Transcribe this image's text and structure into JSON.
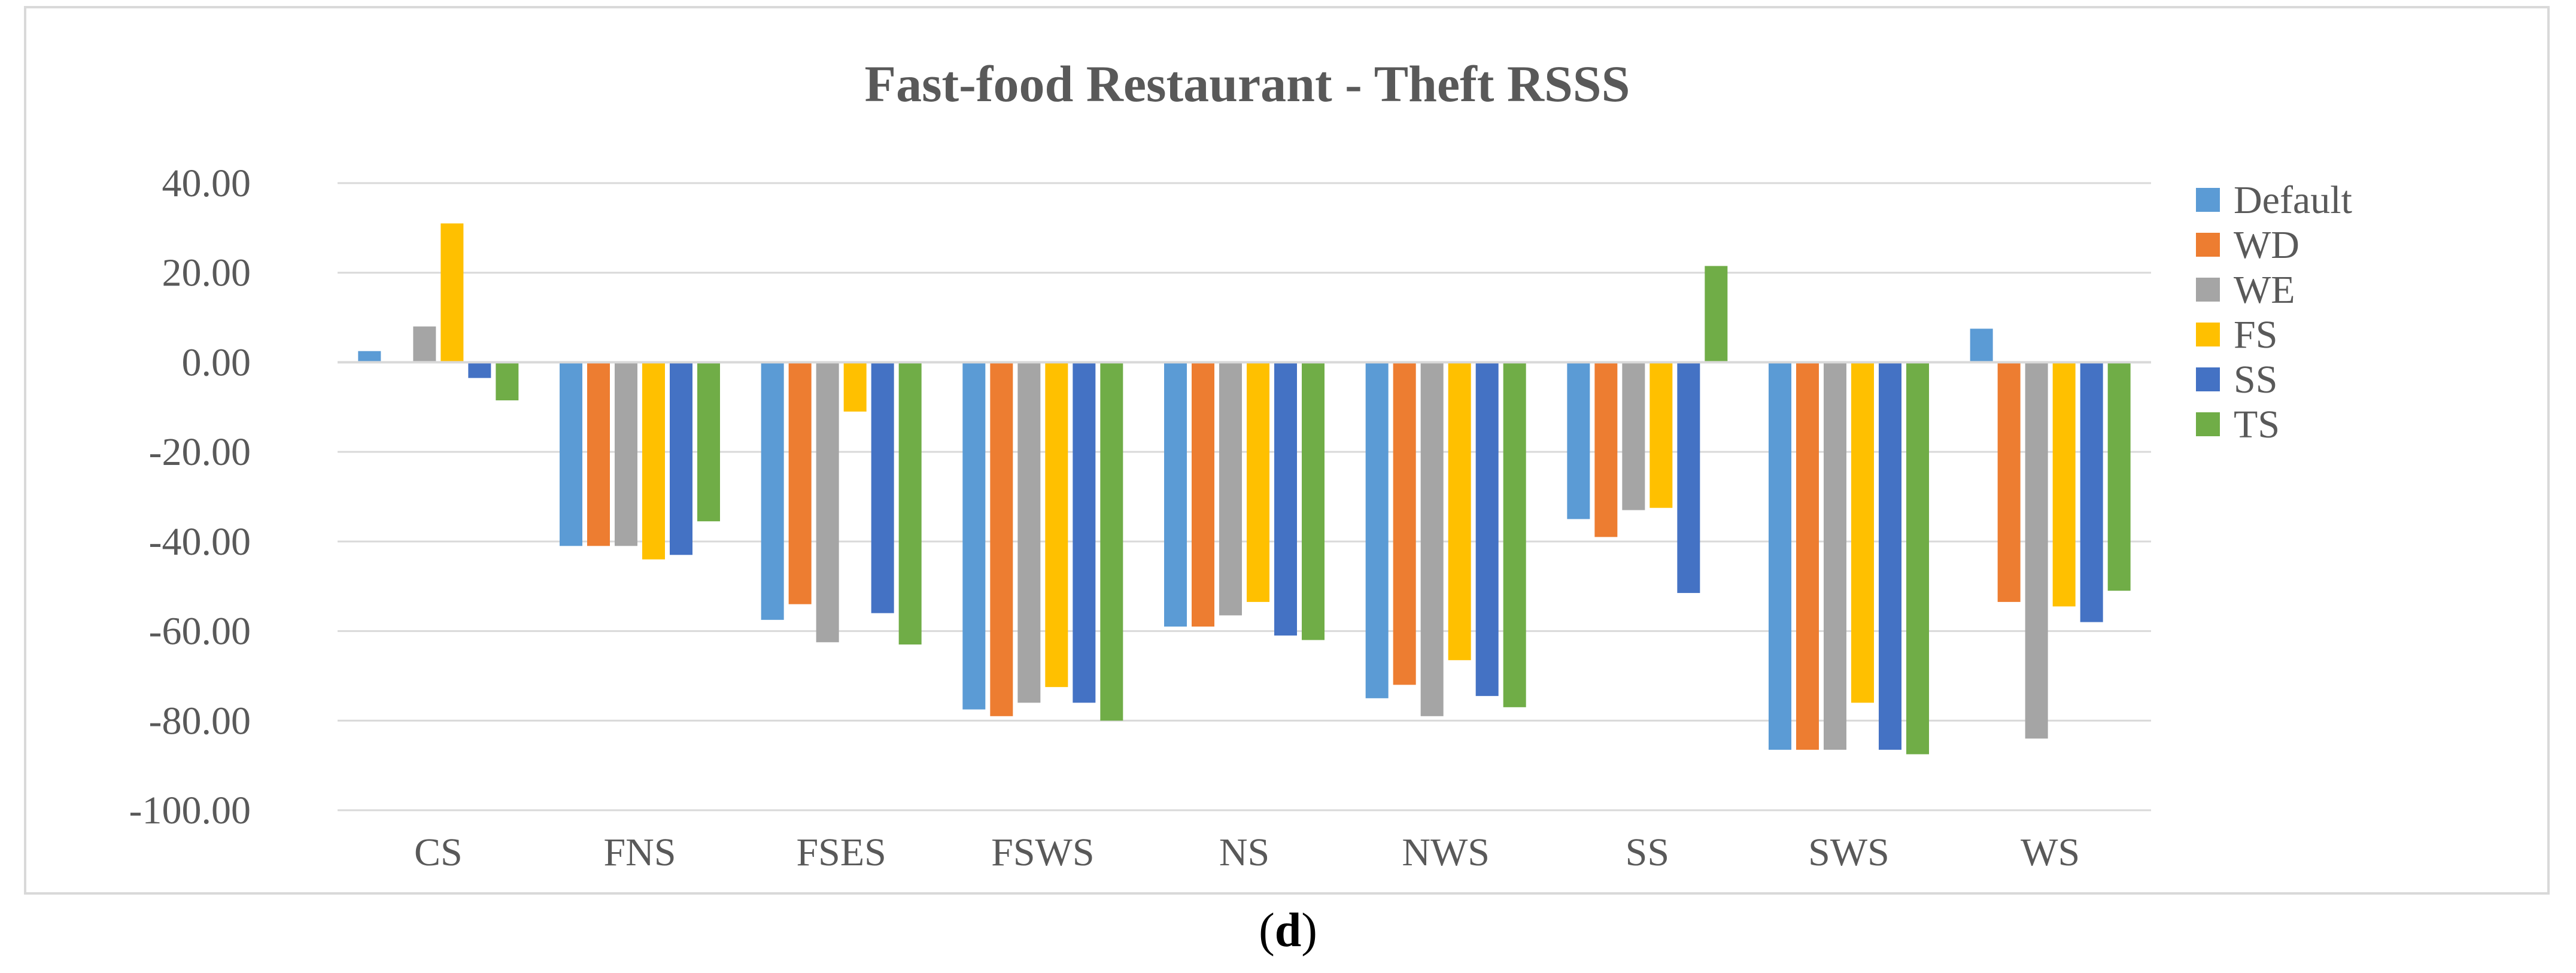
{
  "caption": {
    "open": "(",
    "letter": "d",
    "close": ")"
  },
  "chart_data": {
    "type": "bar",
    "title": "Fast-food Restaurant - Theft RSSS",
    "xlabel": "",
    "ylabel": "",
    "ylim": [
      -100,
      40
    ],
    "yticks": [
      "40.00",
      "20.00",
      "0.00",
      "-20.00",
      "-40.00",
      "-60.00",
      "-80.00",
      "-100.00"
    ],
    "grid": true,
    "legend_position": "right",
    "categories": [
      "CS",
      "FNS",
      "FSES",
      "FSWS",
      "NS",
      "NWS",
      "SS",
      "SWS",
      "WS"
    ],
    "series": [
      {
        "name": "Default",
        "color": "#5b9bd5",
        "values": [
          2.5,
          -41,
          -57.5,
          -77.5,
          -59,
          -75,
          -35,
          -86.5,
          7.5
        ]
      },
      {
        "name": "WD",
        "color": "#ed7d31",
        "values": [
          0,
          -41,
          -54,
          -79,
          -59,
          -72,
          -39,
          -86.5,
          -53.5
        ]
      },
      {
        "name": "WE",
        "color": "#a5a5a5",
        "values": [
          8,
          -41,
          -62.5,
          -76,
          -56.5,
          -79,
          -33,
          -86.5,
          -84
        ]
      },
      {
        "name": "FS",
        "color": "#ffc000",
        "values": [
          31,
          -44,
          -11,
          -72.5,
          -53.5,
          -66.5,
          -32.5,
          -76,
          -54.5
        ]
      },
      {
        "name": "SS",
        "color": "#4472c4",
        "values": [
          -3.5,
          -43,
          -56,
          -76,
          -61,
          -74.5,
          -51.5,
          -86.5,
          -58
        ]
      },
      {
        "name": "TS",
        "color": "#70ad47",
        "values": [
          -8.5,
          -35.5,
          -63,
          -80,
          -62,
          -77,
          21.5,
          -87.5,
          -51
        ]
      }
    ]
  }
}
